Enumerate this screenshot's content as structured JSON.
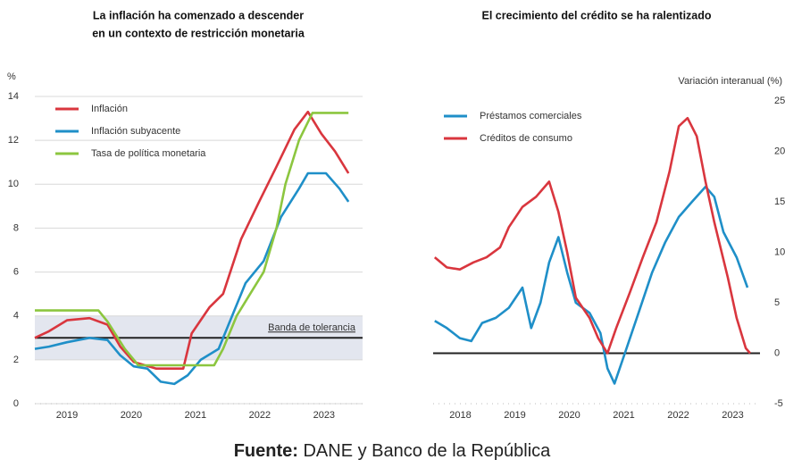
{
  "chart_data": [
    {
      "type": "line",
      "title": [
        "La inflación ha comenzado a descender",
        "en un contexto de restricción monetaria"
      ],
      "y_label": "%",
      "y_axis_side": "left",
      "legend": "upper left",
      "grid": true,
      "xlim": [
        2019,
        2024.1
      ],
      "xticks": [
        {
          "value": 2019.5,
          "label": "2019"
        },
        {
          "value": 2020.5,
          "label": "2020"
        },
        {
          "value": 2021.5,
          "label": "2021"
        },
        {
          "value": 2022.5,
          "label": "2022"
        },
        {
          "value": 2023.5,
          "label": "2023"
        }
      ],
      "ylim": [
        0,
        14
      ],
      "yticks": [
        0,
        2,
        4,
        6,
        8,
        10,
        12,
        14
      ],
      "band": {
        "range": [
          2,
          4
        ],
        "line": 3,
        "label": "Banda de tolerancia"
      },
      "series": [
        {
          "name": "Inflación",
          "color": "#d9363e",
          "x": [
            2019.0,
            2019.22,
            2019.5,
            2019.85,
            2020.13,
            2020.33,
            2020.54,
            2020.89,
            2021.31,
            2021.44,
            2021.72,
            2021.93,
            2022.21,
            2022.49,
            2022.76,
            2023.04,
            2023.25,
            2023.46,
            2023.67,
            2023.88
          ],
          "values": [
            3.0,
            3.3,
            3.8,
            3.9,
            3.6,
            2.6,
            1.9,
            1.6,
            1.6,
            3.2,
            4.4,
            5.0,
            7.5,
            9.2,
            10.8,
            12.5,
            13.3,
            12.3,
            11.5,
            10.5
          ]
        },
        {
          "name": "Inflación subyacente",
          "color": "#1f8fc8",
          "x": [
            2019.0,
            2019.22,
            2019.5,
            2019.85,
            2020.13,
            2020.33,
            2020.54,
            2020.75,
            2020.96,
            2021.17,
            2021.38,
            2021.58,
            2021.86,
            2022.07,
            2022.28,
            2022.56,
            2022.83,
            2023.11,
            2023.25,
            2023.53,
            2023.74,
            2023.88
          ],
          "values": [
            2.5,
            2.6,
            2.8,
            3.0,
            2.9,
            2.2,
            1.7,
            1.6,
            1.0,
            0.9,
            1.3,
            2.0,
            2.5,
            4.0,
            5.5,
            6.5,
            8.5,
            9.8,
            10.5,
            10.5,
            9.8,
            9.2
          ]
        },
        {
          "name": "Tasa de política monetaria",
          "color": "#8cc63f",
          "x": [
            2019.0,
            2019.99,
            2020.13,
            2020.4,
            2020.61,
            2020.89,
            2021.44,
            2021.79,
            2021.93,
            2022.14,
            2022.35,
            2022.56,
            2022.76,
            2022.9,
            2023.11,
            2023.32,
            2023.88
          ],
          "values": [
            4.25,
            4.25,
            3.75,
            2.5,
            1.75,
            1.75,
            1.75,
            1.75,
            2.5,
            4.0,
            5.0,
            6.0,
            8.0,
            10.0,
            12.0,
            13.25,
            13.25
          ]
        }
      ]
    },
    {
      "type": "line",
      "title": [
        "El crecimiento del crédito se ha ralentizado"
      ],
      "y_label": "Variación interanual (%)",
      "y_axis_side": "right",
      "legend": "upper left",
      "grid": false,
      "xlim": [
        2018,
        2024
      ],
      "xticks": [
        {
          "value": 2018.5,
          "label": "2018"
        },
        {
          "value": 2019.5,
          "label": "2019"
        },
        {
          "value": 2020.5,
          "label": "2020"
        },
        {
          "value": 2021.5,
          "label": "2021"
        },
        {
          "value": 2022.5,
          "label": "2022"
        },
        {
          "value": 2023.5,
          "label": "2023"
        }
      ],
      "ylim": [
        -5,
        25
      ],
      "yticks": [
        -5,
        0,
        5,
        10,
        15,
        20,
        25
      ],
      "baseline": 0,
      "series": [
        {
          "name": "Préstamos comerciales",
          "color": "#1f8fc8",
          "x": [
            2018.03,
            2018.25,
            2018.49,
            2018.7,
            2018.9,
            2019.15,
            2019.39,
            2019.64,
            2019.8,
            2019.97,
            2020.13,
            2020.3,
            2020.46,
            2020.62,
            2020.87,
            2021.07,
            2021.2,
            2021.33,
            2021.52,
            2021.77,
            2022.02,
            2022.26,
            2022.51,
            2022.75,
            2023.0,
            2023.16,
            2023.33,
            2023.57,
            2023.77
          ],
          "values": [
            3.2,
            2.5,
            1.5,
            1.2,
            3.0,
            3.5,
            4.5,
            6.5,
            2.5,
            5.0,
            9.0,
            11.5,
            8.0,
            5.0,
            4.0,
            2.0,
            -1.5,
            -3.0,
            0.0,
            4.0,
            8.0,
            11.0,
            13.5,
            15.0,
            16.5,
            15.5,
            12.0,
            9.5,
            6.5
          ]
        },
        {
          "name": "Créditos de consumo",
          "color": "#d9363e",
          "x": [
            2018.03,
            2018.25,
            2018.49,
            2018.74,
            2018.98,
            2019.23,
            2019.39,
            2019.64,
            2019.89,
            2020.13,
            2020.3,
            2020.46,
            2020.62,
            2020.87,
            2021.03,
            2021.2,
            2021.36,
            2021.61,
            2021.85,
            2022.1,
            2022.34,
            2022.51,
            2022.67,
            2022.84,
            2023.0,
            2023.16,
            2023.41,
            2023.57,
            2023.74,
            2023.82
          ],
          "values": [
            9.5,
            8.5,
            8.3,
            9.0,
            9.5,
            10.5,
            12.5,
            14.5,
            15.5,
            17.0,
            14.0,
            10.0,
            5.5,
            3.5,
            1.5,
            0.0,
            2.5,
            6.0,
            9.5,
            13.0,
            18.0,
            22.5,
            23.3,
            21.5,
            17.0,
            13.0,
            7.5,
            3.5,
            0.5,
            0.0
          ]
        }
      ]
    }
  ],
  "source": {
    "label": "Fuente:",
    "text": "DANE y Banco de la República"
  }
}
